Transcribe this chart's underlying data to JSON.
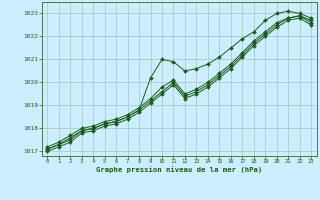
{
  "xlabel": "Graphe pression niveau de la mer (hPa)",
  "bg_color": "#cceeff",
  "grid_color": "#aacccc",
  "line_color": "#1a5c1a",
  "marker_color": "#1a5c1a",
  "axis_label_color": "#1a5c1a",
  "tick_label_color": "#1a5c1a",
  "spine_color": "#336633",
  "xlim": [
    -0.5,
    23.5
  ],
  "ylim": [
    1016.8,
    1023.5
  ],
  "yticks": [
    1017,
    1018,
    1019,
    1020,
    1021,
    1022,
    1023
  ],
  "xticks": [
    0,
    1,
    2,
    3,
    4,
    5,
    6,
    7,
    8,
    9,
    10,
    11,
    12,
    13,
    14,
    15,
    16,
    17,
    18,
    19,
    20,
    21,
    22,
    23
  ],
  "series": [
    [
      1017.1,
      1017.3,
      1017.5,
      1017.9,
      1018.0,
      1018.2,
      1018.3,
      1018.5,
      1018.8,
      1020.2,
      1021.0,
      1020.9,
      1020.5,
      1020.6,
      1020.8,
      1021.1,
      1021.5,
      1021.9,
      1022.2,
      1022.7,
      1023.0,
      1023.1,
      1023.0,
      1022.8
    ],
    [
      1017.2,
      1017.4,
      1017.7,
      1018.0,
      1018.1,
      1018.3,
      1018.4,
      1018.6,
      1018.9,
      1019.3,
      1019.8,
      1020.1,
      1019.5,
      1019.7,
      1020.0,
      1020.4,
      1020.8,
      1021.3,
      1021.8,
      1022.2,
      1022.6,
      1022.8,
      1022.9,
      1022.6
    ],
    [
      1017.0,
      1017.2,
      1017.4,
      1017.8,
      1017.9,
      1018.1,
      1018.2,
      1018.4,
      1018.7,
      1019.1,
      1019.5,
      1019.9,
      1019.3,
      1019.5,
      1019.8,
      1020.2,
      1020.6,
      1021.1,
      1021.6,
      1022.0,
      1022.4,
      1022.7,
      1022.8,
      1022.5
    ],
    [
      1017.1,
      1017.3,
      1017.6,
      1017.9,
      1018.0,
      1018.2,
      1018.3,
      1018.5,
      1018.8,
      1019.2,
      1019.6,
      1020.0,
      1019.4,
      1019.6,
      1019.9,
      1020.3,
      1020.7,
      1021.2,
      1021.7,
      1022.1,
      1022.5,
      1022.8,
      1022.9,
      1022.7
    ]
  ]
}
